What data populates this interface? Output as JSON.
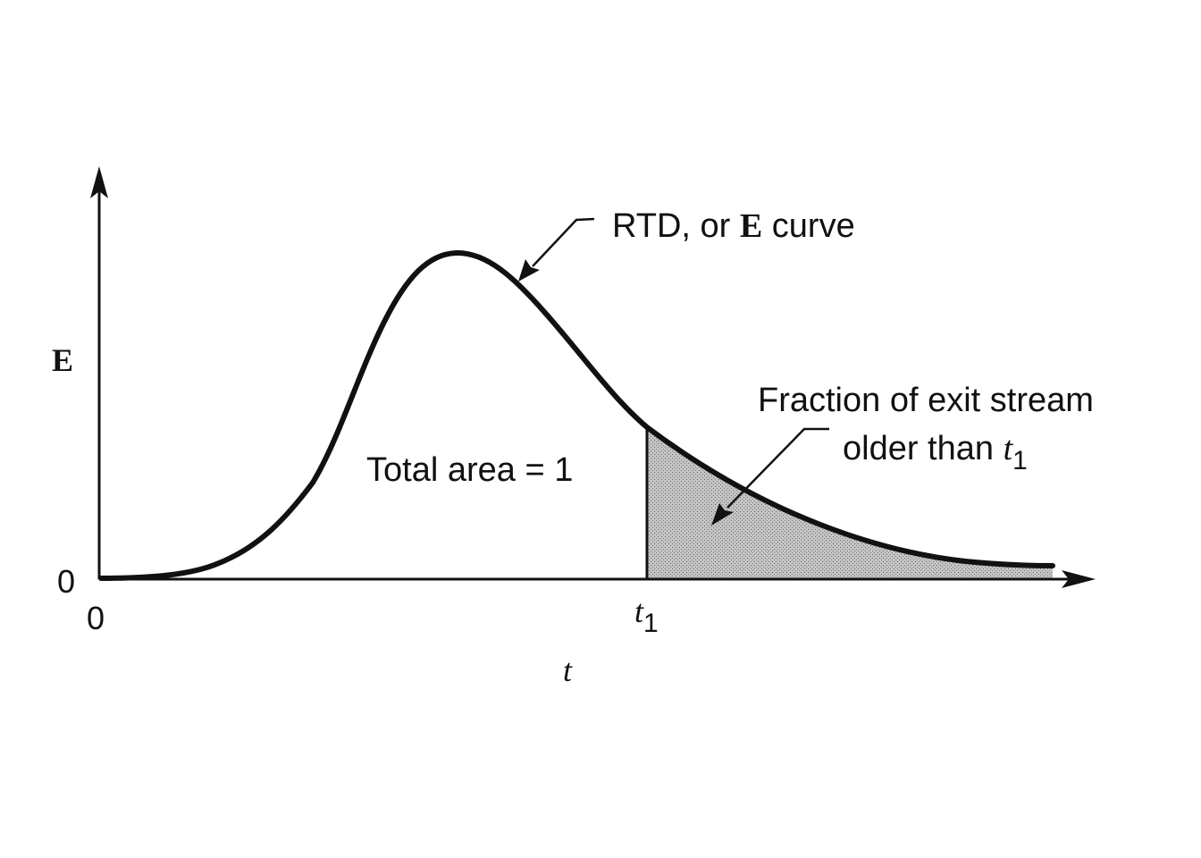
{
  "labels": {
    "y_axis": "E",
    "x_axis": "t",
    "y_zero": "0",
    "x_zero": "0",
    "t1_base": "t",
    "t1_sub": "1",
    "curve_label_pre": "RTD, or ",
    "curve_label_bold": "E",
    "curve_label_post": " curve",
    "total_area": "Total area = 1",
    "fraction_line1": "Fraction of exit stream",
    "fraction_line2_text": "older than ",
    "fraction_line2_t": "t",
    "fraction_line2_sub": "1"
  },
  "colors": {
    "ink": "#111111",
    "shade": "#b9b9b9",
    "background": "#ffffff"
  }
}
